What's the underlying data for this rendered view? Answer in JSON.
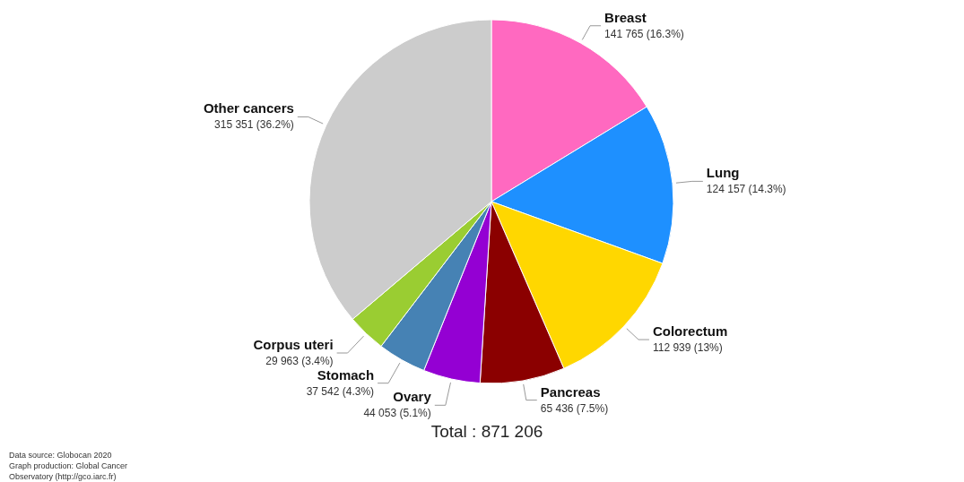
{
  "chart_data": {
    "type": "pie",
    "categories": [
      "Breast",
      "Lung",
      "Colorectum",
      "Pancreas",
      "Ovary",
      "Stomach",
      "Corpus uteri",
      "Other cancers"
    ],
    "values": [
      141765,
      124157,
      112939,
      65436,
      44053,
      37542,
      29963,
      315351
    ],
    "colors": [
      "#ff69c0",
      "#1e90ff",
      "#ffd700",
      "#8b0000",
      "#9400d3",
      "#4682b4",
      "#9acd32",
      "#cccccc"
    ],
    "value_labels": [
      "141 765 (16.3%)",
      "124 157 (14.3%)",
      "112 939 (13%)",
      "65 436 (7.5%)",
      "44 053 (5.1%)",
      "37 542 (4.3%)",
      "29 963 (3.4%)",
      "315 351 (36.2%)"
    ],
    "legend": false,
    "annotations": [
      "Total : 871 206",
      "Data source: Globocan 2020",
      "Graph production: Global Cancer Observatory (http://gco.iarc.fr)"
    ]
  }
}
